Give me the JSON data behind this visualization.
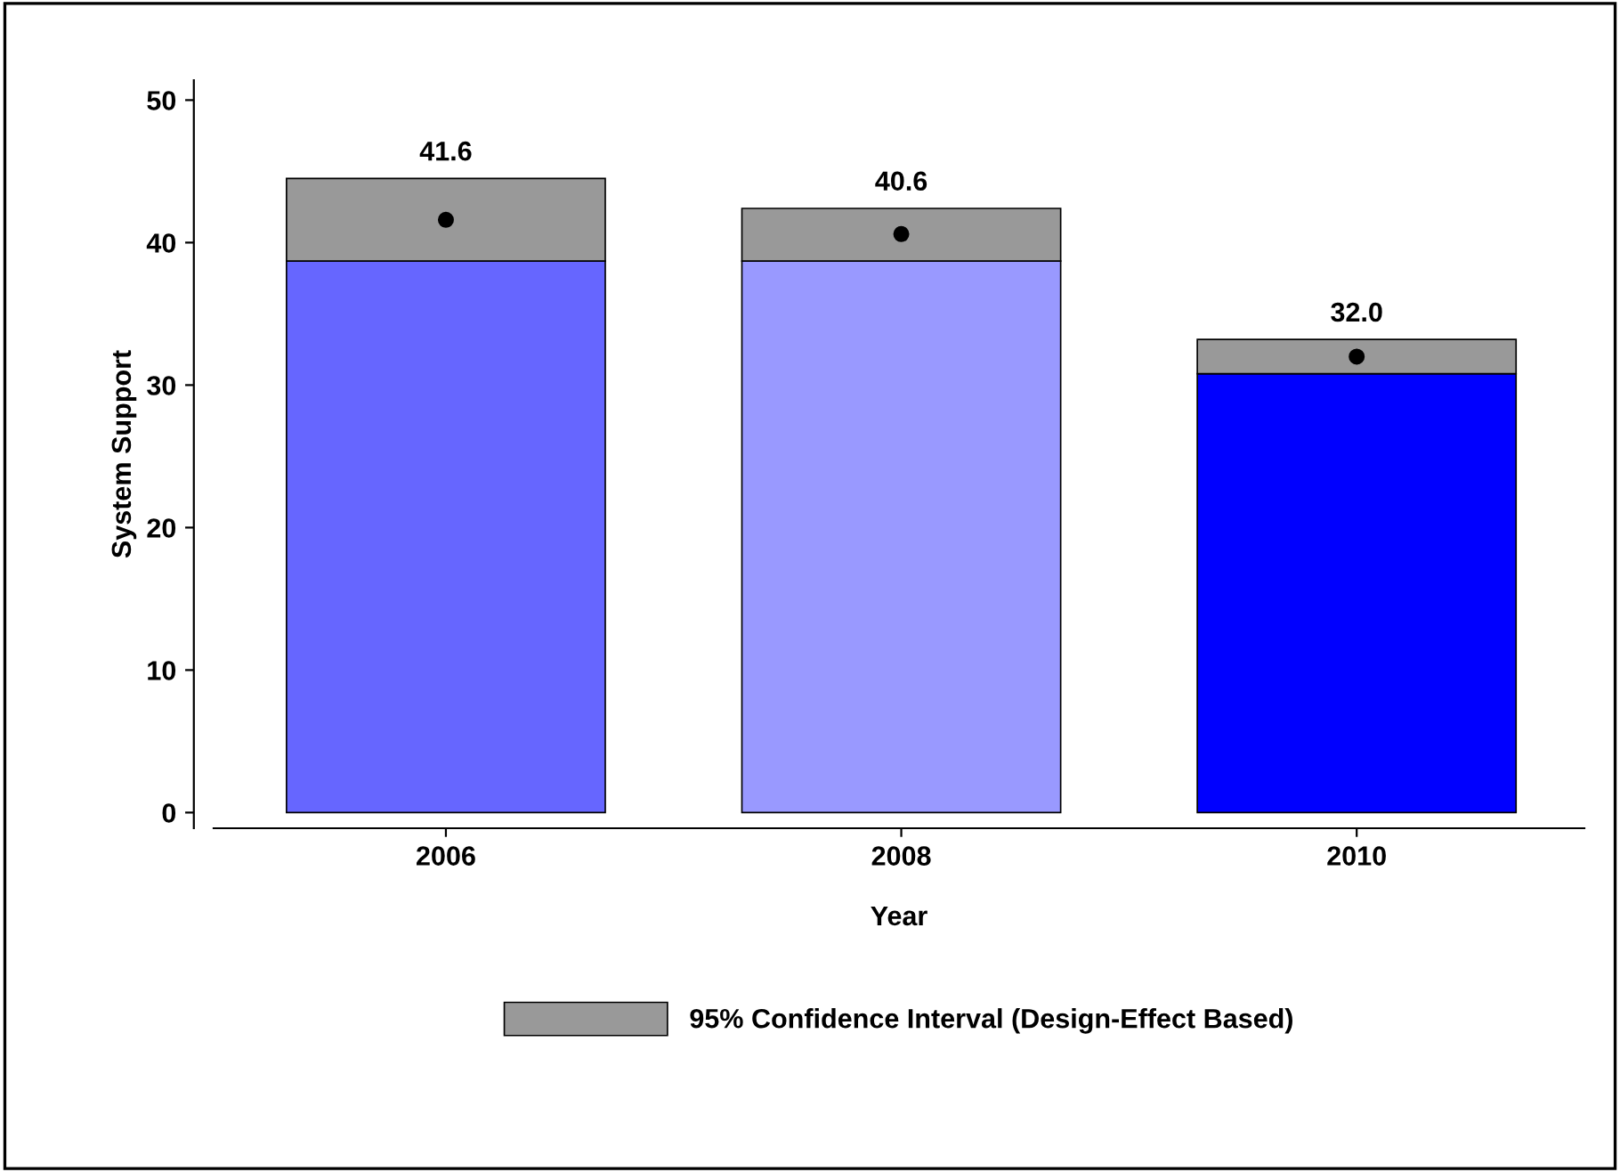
{
  "chart_data": {
    "type": "bar",
    "xlabel": "Year",
    "ylabel": "System Support",
    "categories": [
      "2006",
      "2008",
      "2010"
    ],
    "stacked": true,
    "series": [
      {
        "colors": [
          "#6666ff",
          "#9999ff",
          "#0000ff"
        ],
        "values": [
          38.7,
          38.7,
          30.8
        ]
      },
      {
        "name": "95% Confidence Interval (Design-Effect Based)",
        "color": "#999999",
        "values": [
          5.8,
          3.7,
          2.4
        ]
      },
      {
        "type": "scatter",
        "color": "#000000",
        "marker": "circle",
        "values": [
          41.6,
          40.6,
          32.0
        ],
        "value_labels": [
          "41.6",
          "40.6",
          "32.0"
        ]
      }
    ],
    "ylim": [
      -1.1,
      51.4
    ],
    "yticks": [
      0,
      10,
      20,
      30,
      40,
      50
    ],
    "grid": false,
    "legend": "bottom"
  }
}
